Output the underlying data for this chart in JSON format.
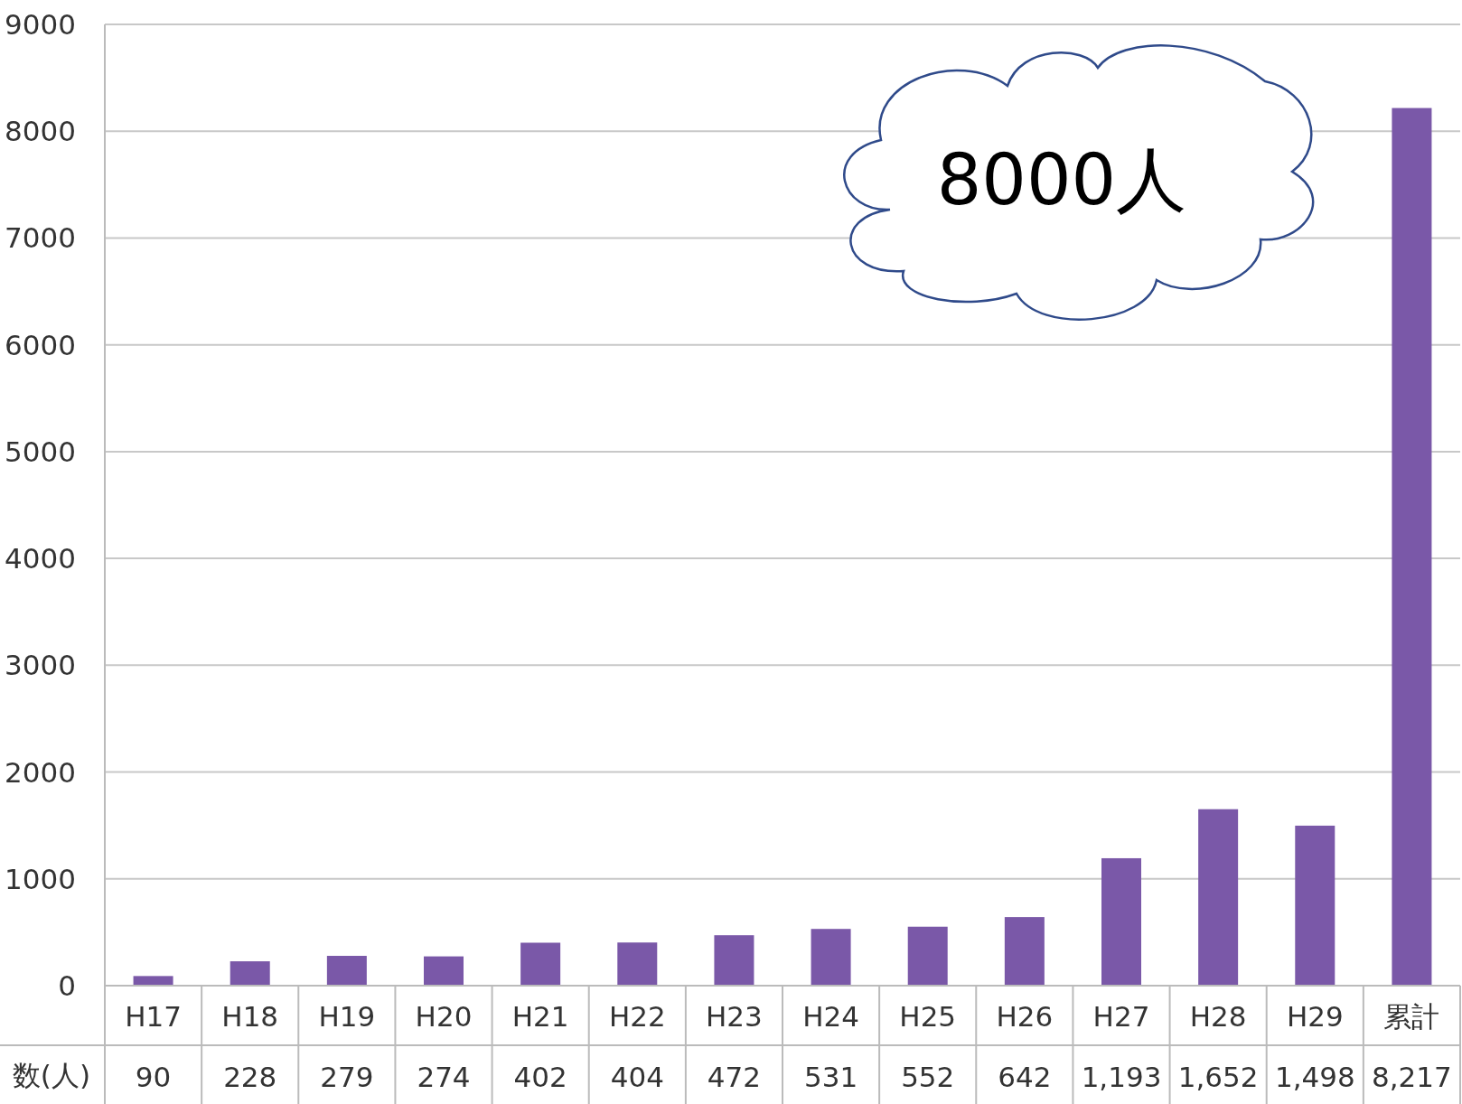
{
  "chart_data": {
    "type": "bar",
    "categories": [
      "H17",
      "H18",
      "H19",
      "H20",
      "H21",
      "H22",
      "H23",
      "H24",
      "H25",
      "H26",
      "H27",
      "H28",
      "H29",
      "累計"
    ],
    "values": [
      90,
      228,
      279,
      274,
      402,
      404,
      472,
      531,
      552,
      642,
      1193,
      1652,
      1498,
      8217
    ],
    "value_labels": [
      "90",
      "228",
      "279",
      "274",
      "402",
      "404",
      "472",
      "531",
      "552",
      "642",
      "1,193",
      "1,652",
      "1,498",
      "8,217"
    ],
    "color": "#7a58a8",
    "ylim": [
      0,
      9000
    ],
    "yticks": [
      0,
      1000,
      2000,
      3000,
      4000,
      5000,
      6000,
      7000,
      8000,
      9000
    ],
    "grid": "y",
    "annotations": [
      "8000人",
      "数(人)"
    ]
  }
}
